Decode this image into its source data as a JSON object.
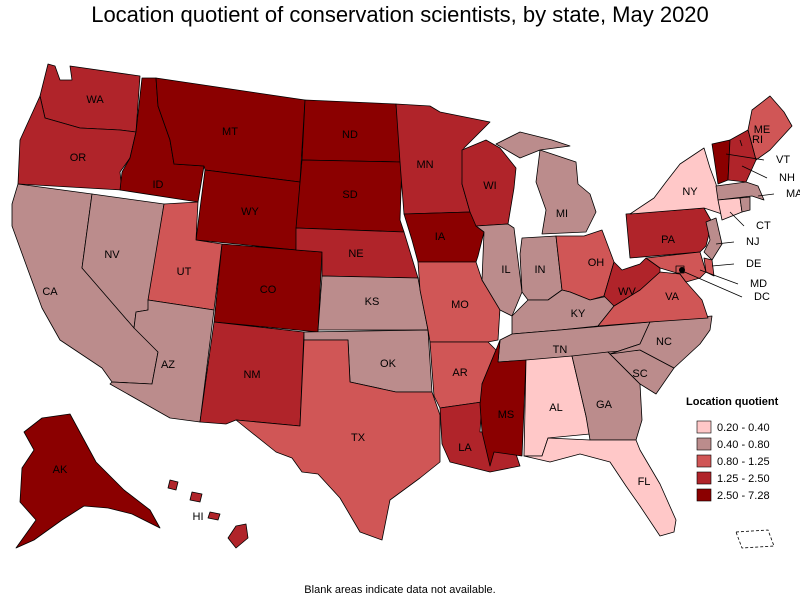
{
  "title": "Location quotient of conservation scientists, by state, May 2020",
  "note": "Blank areas indicate data not available.",
  "legend": {
    "title": "Location quotient",
    "classes": [
      {
        "label": "0.20 - 0.40",
        "color": "#ffc8c8"
      },
      {
        "label": "0.40 - 0.80",
        "color": "#bb8c8c"
      },
      {
        "label": "0.80 - 1.25",
        "color": "#d05656"
      },
      {
        "label": "1.25 - 2.50",
        "color": "#b0242a"
      },
      {
        "label": "2.50 - 7.28",
        "color": "#8b0000"
      }
    ]
  },
  "states": [
    {
      "abbr": "WA",
      "cls": 3
    },
    {
      "abbr": "OR",
      "cls": 3
    },
    {
      "abbr": "CA",
      "cls": 1
    },
    {
      "abbr": "ID",
      "cls": 4
    },
    {
      "abbr": "NV",
      "cls": 1
    },
    {
      "abbr": "MT",
      "cls": 4
    },
    {
      "abbr": "WY",
      "cls": 4
    },
    {
      "abbr": "UT",
      "cls": 2
    },
    {
      "abbr": "AZ",
      "cls": 1
    },
    {
      "abbr": "CO",
      "cls": 4
    },
    {
      "abbr": "NM",
      "cls": 3
    },
    {
      "abbr": "ND",
      "cls": 4
    },
    {
      "abbr": "SD",
      "cls": 4
    },
    {
      "abbr": "NE",
      "cls": 3
    },
    {
      "abbr": "KS",
      "cls": 1
    },
    {
      "abbr": "OK",
      "cls": 1
    },
    {
      "abbr": "TX",
      "cls": 2
    },
    {
      "abbr": "MN",
      "cls": 3
    },
    {
      "abbr": "IA",
      "cls": 4
    },
    {
      "abbr": "MO",
      "cls": 2
    },
    {
      "abbr": "AR",
      "cls": 2
    },
    {
      "abbr": "LA",
      "cls": 3
    },
    {
      "abbr": "WI",
      "cls": 3
    },
    {
      "abbr": "IL",
      "cls": 1
    },
    {
      "abbr": "MI",
      "cls": 1
    },
    {
      "abbr": "IN",
      "cls": 1
    },
    {
      "abbr": "OH",
      "cls": 2
    },
    {
      "abbr": "KY",
      "cls": 1
    },
    {
      "abbr": "TN",
      "cls": 1
    },
    {
      "abbr": "MS",
      "cls": 4
    },
    {
      "abbr": "AL",
      "cls": 0
    },
    {
      "abbr": "GA",
      "cls": 1
    },
    {
      "abbr": "FL",
      "cls": 0
    },
    {
      "abbr": "SC",
      "cls": 1
    },
    {
      "abbr": "NC",
      "cls": 1
    },
    {
      "abbr": "VA",
      "cls": 2
    },
    {
      "abbr": "WV",
      "cls": 3
    },
    {
      "abbr": "PA",
      "cls": 3
    },
    {
      "abbr": "NY",
      "cls": 0
    },
    {
      "abbr": "ME",
      "cls": 2
    },
    {
      "abbr": "VT",
      "cls": 4
    },
    {
      "abbr": "NH",
      "cls": 3
    },
    {
      "abbr": "MA",
      "cls": 1
    },
    {
      "abbr": "CT",
      "cls": 0
    },
    {
      "abbr": "RI",
      "cls": 1
    },
    {
      "abbr": "NJ",
      "cls": 1
    },
    {
      "abbr": "DE",
      "cls": 2
    },
    {
      "abbr": "MD",
      "cls": 2
    },
    {
      "abbr": "DC",
      "cls": 2
    },
    {
      "abbr": "AK",
      "cls": 4
    },
    {
      "abbr": "HI",
      "cls": 3
    }
  ],
  "puerto_rico": {
    "color": "#ffffff"
  }
}
